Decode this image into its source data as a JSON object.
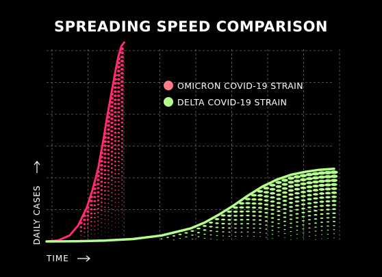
{
  "chart_data": {
    "type": "line",
    "title": "SPREADING SPEED COMPARISON",
    "xlabel": "TIME",
    "ylabel": "DAILY CASES",
    "xlim": [
      0,
      100
    ],
    "ylim": [
      0,
      100
    ],
    "grid": true,
    "legend_position": "top-right",
    "series": [
      {
        "name": "OMICRON COVID-19 STRAIN",
        "color": "#ff2d6e",
        "legend_color": "#ff7b8a",
        "x": [
          0,
          4,
          8,
          11,
          14,
          16,
          18,
          19,
          20,
          21,
          22,
          23,
          24,
          25,
          26,
          27
        ],
        "y": [
          0,
          0.5,
          3,
          8,
          17,
          26,
          37,
          45,
          53,
          62,
          70,
          78,
          86,
          93,
          98,
          100
        ]
      },
      {
        "name": "DELTA COVID-19 STRAIN",
        "color": "#b4ff8c",
        "legend_color": "#b4ff8c",
        "x": [
          0,
          10,
          20,
          30,
          40,
          50,
          55,
          60,
          65,
          70,
          75,
          80,
          85,
          90,
          95,
          100
        ],
        "y": [
          0,
          0.1,
          0.4,
          1.2,
          3,
          6.5,
          9.5,
          13.5,
          18,
          23,
          27.5,
          31,
          33.5,
          35,
          36,
          36.5
        ]
      }
    ]
  }
}
